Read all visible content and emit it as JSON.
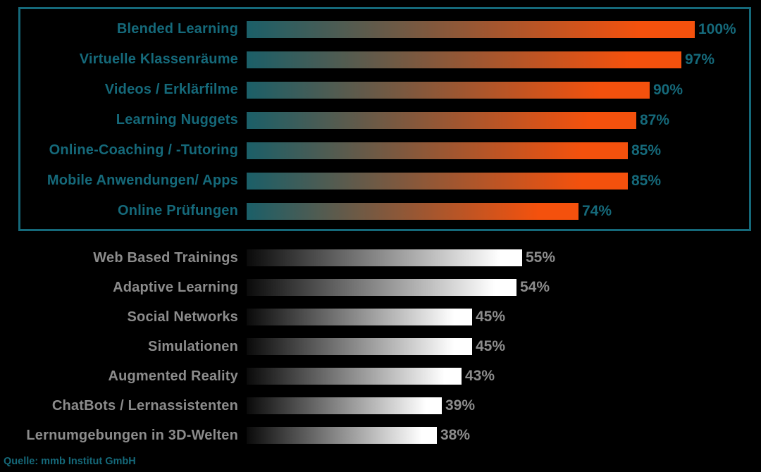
{
  "chart_data": {
    "type": "bar",
    "orientation": "horizontal",
    "unit": "%",
    "value_range": [
      0,
      100
    ],
    "grid": false,
    "legend": false,
    "source": "Quelle: mmb Institut GmbH",
    "groups": [
      {
        "name": "highlighted-top-group",
        "highlighted": true,
        "bar_style": "teal-to-orange-gradient",
        "items": [
          {
            "label": "Blended Learning",
            "value": 100,
            "display": "100%"
          },
          {
            "label": "Virtuelle Klassenräume",
            "value": 97,
            "display": "97%"
          },
          {
            "label": "Videos / Erklärfilme",
            "value": 90,
            "display": "90%"
          },
          {
            "label": "Learning Nuggets",
            "value": 87,
            "display": "87%"
          },
          {
            "label": "Online-Coaching / -Tutoring",
            "value": 85,
            "display": "85%"
          },
          {
            "label": "Mobile Anwendungen/ Apps",
            "value": 85,
            "display": "85%"
          },
          {
            "label": "Online Prüfungen",
            "value": 74,
            "display": "74%"
          }
        ]
      },
      {
        "name": "secondary-bottom-group",
        "highlighted": false,
        "bar_style": "black-to-white-gradient",
        "items": [
          {
            "label": "Web Based Trainings",
            "value": 55,
            "display": "55%"
          },
          {
            "label": "Adaptive Learning",
            "value": 54,
            "display": "54%"
          },
          {
            "label": "Social Networks",
            "value": 45,
            "display": "45%"
          },
          {
            "label": "Simulationen",
            "value": 45,
            "display": "45%"
          },
          {
            "label": "Augmented Reality",
            "value": 43,
            "display": "43%"
          },
          {
            "label": "ChatBots / Lernassistenten",
            "value": 39,
            "display": "39%"
          },
          {
            "label": "Lernumgebungen in 3D-Welten",
            "value": 38,
            "display": "38%"
          }
        ]
      }
    ]
  },
  "colors": {
    "bg": "#000000",
    "accent": "#15697a",
    "bar_teal": "#1b5f68",
    "bar_orange": "#f4510d",
    "bar_black": "#0a0a0a",
    "bar_white": "#ffffff",
    "gray_label": "#8c8c8c"
  }
}
